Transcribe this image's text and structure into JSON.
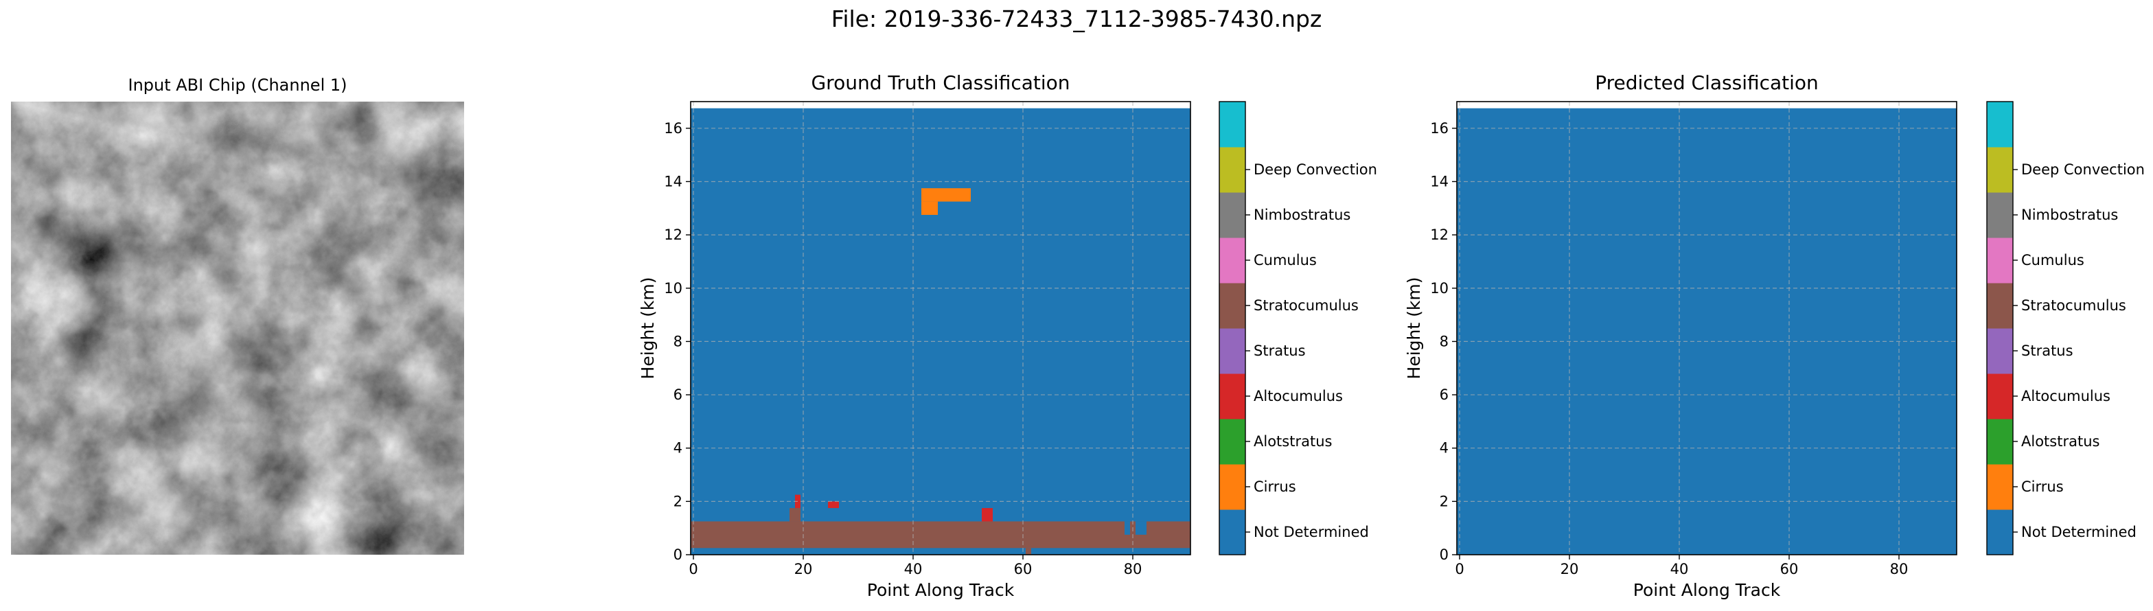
{
  "figure": {
    "suptitle": "File: 2019-336-72433_7112-3985-7430.npz"
  },
  "abi_panel": {
    "title": "Input ABI Chip (Channel 1)"
  },
  "chart_data": [
    {
      "type": "heatmap",
      "title": "Ground Truth Classification",
      "xlabel": "Point Along Track",
      "ylabel": "Height (km)",
      "xlim": [
        -0.5,
        90.5
      ],
      "ylim": [
        0,
        17
      ],
      "data_extent_y": [
        0,
        16.75
      ],
      "xticks": [
        0,
        20,
        40,
        60,
        80
      ],
      "yticks": [
        0,
        2,
        4,
        6,
        8,
        10,
        12,
        14,
        16
      ],
      "grid": true,
      "background_class": "Not Determined",
      "regions": [
        {
          "class": "Stratocumulus",
          "x": [
            -0.5,
            90.5
          ],
          "y": [
            0.25,
            1.25
          ]
        },
        {
          "class": "Stratocumulus",
          "x": [
            17.5,
            19.5
          ],
          "y": [
            1.25,
            1.75
          ]
        },
        {
          "class": "Stratocumulus",
          "x": [
            60.5,
            61.5
          ],
          "y": [
            0,
            0.25
          ]
        },
        {
          "class": "Altocumulus",
          "x": [
            18.5,
            19.5
          ],
          "y": [
            1.75,
            2.25
          ]
        },
        {
          "class": "Altocumulus",
          "x": [
            24.5,
            26.5
          ],
          "y": [
            1.75,
            2.0
          ]
        },
        {
          "class": "Altocumulus",
          "x": [
            52.5,
            54.5
          ],
          "y": [
            1.25,
            1.75
          ]
        },
        {
          "class": "Not Determined",
          "x": [
            78.5,
            79.5
          ],
          "y": [
            0.75,
            1.25
          ]
        },
        {
          "class": "Not Determined",
          "x": [
            80.5,
            82.5
          ],
          "y": [
            0.75,
            1.25
          ]
        },
        {
          "class": "Cirrus",
          "x": [
            41.5,
            50.5
          ],
          "y": [
            13.25,
            13.75
          ]
        },
        {
          "class": "Cirrus",
          "x": [
            41.5,
            44.5
          ],
          "y": [
            12.75,
            13.25
          ]
        }
      ],
      "colorbar": {
        "classes": [
          "Not Determined",
          "Cirrus",
          "Alotstratus",
          "Altocumulus",
          "Stratus",
          "Stratocumulus",
          "Cumulus",
          "Nimbostratus",
          "Deep Convection"
        ],
        "colors": [
          "#1f77b4",
          "#ff7f0e",
          "#2ca02c",
          "#d62728",
          "#9467bd",
          "#8c564b",
          "#e377c2",
          "#7f7f7f",
          "#bcbd22",
          "#17becf"
        ]
      }
    },
    {
      "type": "heatmap",
      "title": "Predicted Classification",
      "xlabel": "Point Along Track",
      "ylabel": "Height (km)",
      "xlim": [
        -0.5,
        90.5
      ],
      "ylim": [
        0,
        17
      ],
      "data_extent_y": [
        0,
        16.75
      ],
      "xticks": [
        0,
        20,
        40,
        60,
        80
      ],
      "yticks": [
        0,
        2,
        4,
        6,
        8,
        10,
        12,
        14,
        16
      ],
      "grid": true,
      "background_class": "Not Determined",
      "regions": [],
      "colorbar": {
        "classes": [
          "Not Determined",
          "Cirrus",
          "Alotstratus",
          "Altocumulus",
          "Stratus",
          "Stratocumulus",
          "Cumulus",
          "Nimbostratus",
          "Deep Convection"
        ],
        "colors": [
          "#1f77b4",
          "#ff7f0e",
          "#2ca02c",
          "#d62728",
          "#9467bd",
          "#8c564b",
          "#e377c2",
          "#7f7f7f",
          "#bcbd22",
          "#17becf"
        ]
      }
    }
  ]
}
